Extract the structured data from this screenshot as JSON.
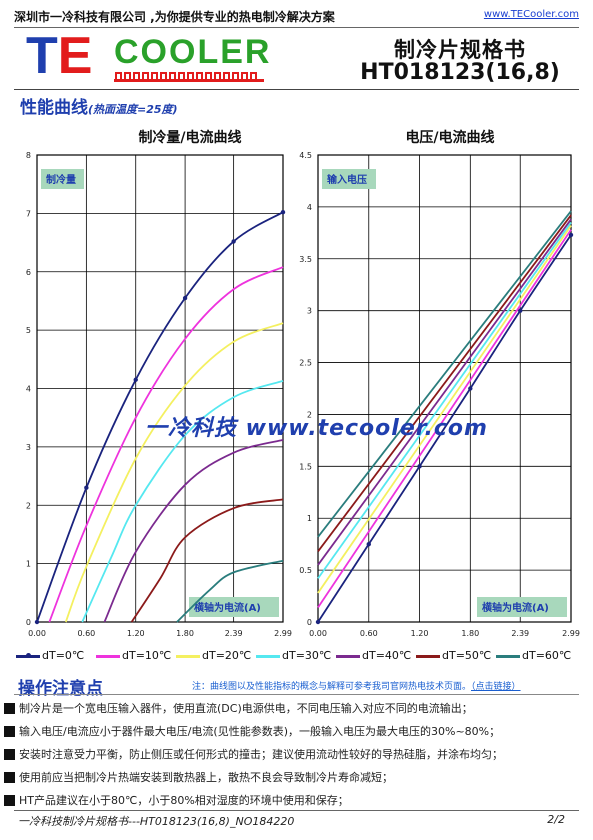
{
  "header": {
    "company": "深圳市一冷科技有限公司 ,为你提供专业的热电制冷解决方案",
    "website": "www.TECooler.com"
  },
  "logo": {
    "t": "T",
    "e": "E",
    "cooler": "COOLER"
  },
  "title": {
    "line1": "制冷片规格书",
    "line2": "HT018123(16,8)"
  },
  "performance": {
    "title": "性能曲线",
    "condition": "(热面温度=25度)"
  },
  "watermark": "一冷科技 www.tecooler.com",
  "colors": {
    "brand_blue": "#1f3fae",
    "series": [
      "#1a237e",
      "#ee33dd",
      "#f4f060",
      "#55e8f0",
      "#7b2a8f",
      "#8b1a1a",
      "#2a7d7d"
    ]
  },
  "chart_data": [
    {
      "type": "line",
      "title": "制冷量/电流曲线",
      "ylabel": "制冷量",
      "xlabel": "横轴为电流(A)",
      "xlim": [
        0,
        2.99
      ],
      "ylim": [
        0,
        8
      ],
      "x_ticks": [
        "0.00",
        "0.60",
        "1.20",
        "1.80",
        "2.39",
        "2.99"
      ],
      "y_ticks": [
        "0",
        "1",
        "2",
        "3",
        "4",
        "5",
        "6",
        "7",
        "8"
      ],
      "grid": true,
      "series": [
        {
          "name": "dT=0℃",
          "points": [
            [
              0,
              0
            ],
            [
              0.6,
              2.3
            ],
            [
              1.2,
              4.15
            ],
            [
              1.8,
              5.55
            ],
            [
              2.39,
              6.52
            ],
            [
              2.99,
              7.02
            ]
          ]
        },
        {
          "name": "dT=10℃",
          "points": [
            [
              0.15,
              0
            ],
            [
              0.6,
              1.65
            ],
            [
              1.2,
              3.5
            ],
            [
              1.8,
              4.85
            ],
            [
              2.39,
              5.7
            ],
            [
              2.99,
              6.08
            ]
          ]
        },
        {
          "name": "dT=20℃",
          "points": [
            [
              0.35,
              0
            ],
            [
              0.6,
              0.95
            ],
            [
              1.2,
              2.8
            ],
            [
              1.8,
              4.05
            ],
            [
              2.39,
              4.8
            ],
            [
              2.99,
              5.12
            ]
          ]
        },
        {
          "name": "dT=30℃",
          "points": [
            [
              0.55,
              0
            ],
            [
              0.9,
              1.1
            ],
            [
              1.2,
              2.0
            ],
            [
              1.8,
              3.2
            ],
            [
              2.39,
              3.85
            ],
            [
              2.99,
              4.13
            ]
          ]
        },
        {
          "name": "dT=40℃",
          "points": [
            [
              0.82,
              0
            ],
            [
              1.2,
              1.2
            ],
            [
              1.8,
              2.35
            ],
            [
              2.39,
              2.9
            ],
            [
              2.99,
              3.12
            ]
          ]
        },
        {
          "name": "dT=50℃",
          "points": [
            [
              1.15,
              0
            ],
            [
              1.5,
              0.75
            ],
            [
              1.8,
              1.45
            ],
            [
              2.39,
              1.95
            ],
            [
              2.99,
              2.1
            ]
          ]
        },
        {
          "name": "dT=60℃",
          "points": [
            [
              1.7,
              0
            ],
            [
              2.1,
              0.55
            ],
            [
              2.39,
              0.85
            ],
            [
              2.99,
              1.05
            ]
          ]
        }
      ]
    },
    {
      "type": "line",
      "title": "电压/电流曲线",
      "ylabel": "输入电压",
      "xlabel": "横轴为电流(A)",
      "xlim": [
        0,
        2.99
      ],
      "ylim": [
        0,
        4.5
      ],
      "x_ticks": [
        "0.00",
        "0.60",
        "1.20",
        "1.80",
        "2.39",
        "2.99"
      ],
      "y_ticks": [
        "0",
        "0.5",
        "1",
        "1.5",
        "2",
        "2.5",
        "3",
        "3.5",
        "4",
        "4.5"
      ],
      "grid": true,
      "series": [
        {
          "name": "dT=0℃",
          "points": [
            [
              0,
              0
            ],
            [
              0.6,
              0.75
            ],
            [
              1.2,
              1.5
            ],
            [
              1.8,
              2.25
            ],
            [
              2.39,
              3.0
            ],
            [
              2.99,
              3.73
            ]
          ]
        },
        {
          "name": "dT=10℃",
          "points": [
            [
              0,
              0.14
            ],
            [
              2.99,
              3.78
            ]
          ]
        },
        {
          "name": "dT=20℃",
          "points": [
            [
              0,
              0.28
            ],
            [
              2.99,
              3.82
            ]
          ]
        },
        {
          "name": "dT=30℃",
          "points": [
            [
              0,
              0.42
            ],
            [
              2.99,
              3.85
            ]
          ]
        },
        {
          "name": "dT=40℃",
          "points": [
            [
              0,
              0.55
            ],
            [
              2.99,
              3.88
            ]
          ]
        },
        {
          "name": "dT=50℃",
          "points": [
            [
              0,
              0.68
            ],
            [
              2.99,
              3.92
            ]
          ]
        },
        {
          "name": "dT=60℃",
          "points": [
            [
              0,
              0.82
            ],
            [
              2.99,
              3.96
            ]
          ]
        }
      ]
    }
  ],
  "legend": [
    "dT=0℃",
    "dT=10℃",
    "dT=20℃",
    "dT=30℃",
    "dT=40℃",
    "dT=50℃",
    "dT=60℃"
  ],
  "operations": {
    "title": "操作注意点",
    "note": "注：曲线图以及性能指标的概念与解释可参考我司官网热电技术页面。",
    "note_link": "（点击链接）",
    "items": [
      "制冷片是一个宽电压输入器件，使用直流(DC)电源供电，不同电压输入对应不同的电流输出；",
      "输入电压/电流应小于器件最大电压/电流(见性能参数表)，一般输入电压为最大电压的30%~80%；",
      "安装时注意受力平衡，防止侧压或任何形式的撞击；建议使用流动性较好的导热硅脂，并涂布均匀；",
      "使用前应当把制冷片热端安装到散热器上，散热不良会导致制冷片寿命减短；",
      "HT产品建议在小于80℃，小于80%相对湿度的环境中使用和保存；"
    ]
  },
  "footer": {
    "left": "一冷科技制冷片规格书---HT018123(16,8)_NO184220",
    "right": "2/2"
  }
}
